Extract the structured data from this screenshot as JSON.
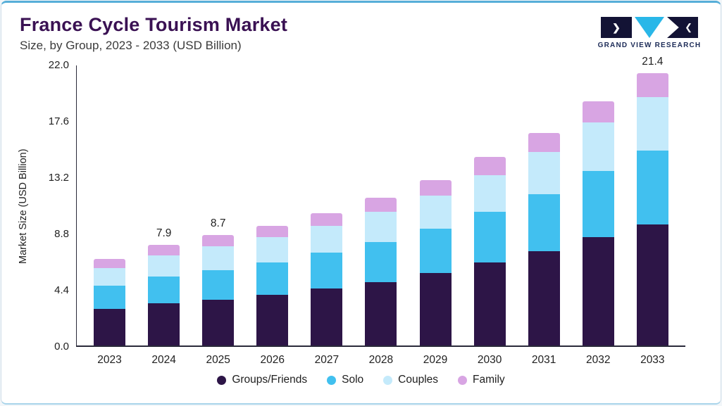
{
  "header": {
    "title": "France Cycle Tourism Market",
    "subtitle": "Size, by Group, 2023 - 2033 (USD Billion)",
    "logo_text": "GRAND VIEW RESEARCH"
  },
  "chart_data": {
    "type": "bar",
    "stacked": true,
    "title": "France Cycle Tourism Market Size, by Group, 2023 - 2033 (USD Billion)",
    "categories": [
      "2023",
      "2024",
      "2025",
      "2026",
      "2027",
      "2028",
      "2029",
      "2030",
      "2031",
      "2032",
      "2033"
    ],
    "series": [
      {
        "name": "Groups/Friends",
        "color": "#2d1547",
        "values": [
          2.9,
          3.3,
          3.6,
          4.0,
          4.5,
          5.0,
          5.7,
          6.5,
          7.4,
          8.5,
          9.5
        ]
      },
      {
        "name": "Solo",
        "color": "#41c0ef",
        "values": [
          1.8,
          2.1,
          2.3,
          2.5,
          2.8,
          3.1,
          3.5,
          4.0,
          4.5,
          5.2,
          5.8
        ]
      },
      {
        "name": "Couples",
        "color": "#c4eafb",
        "values": [
          1.4,
          1.7,
          1.9,
          2.0,
          2.1,
          2.4,
          2.6,
          2.9,
          3.3,
          3.8,
          4.2
        ]
      },
      {
        "name": "Family",
        "color": "#d8a5e3",
        "values": [
          0.7,
          0.8,
          0.9,
          0.9,
          1.0,
          1.1,
          1.2,
          1.4,
          1.5,
          1.7,
          1.9
        ]
      }
    ],
    "totals": [
      6.8,
      7.9,
      8.7,
      9.4,
      10.4,
      11.6,
      13.0,
      14.8,
      16.7,
      19.2,
      21.4
    ],
    "bar_labels": {
      "2024": "7.9",
      "2025": "8.7",
      "2033": "21.4"
    },
    "xlabel": "",
    "ylabel": "Market Size (USD Billion)",
    "ylim": [
      0,
      22
    ],
    "yticks": [
      0,
      4.4,
      8.8,
      13.2,
      17.6,
      22
    ],
    "grid": false,
    "legend_position": "bottom"
  }
}
